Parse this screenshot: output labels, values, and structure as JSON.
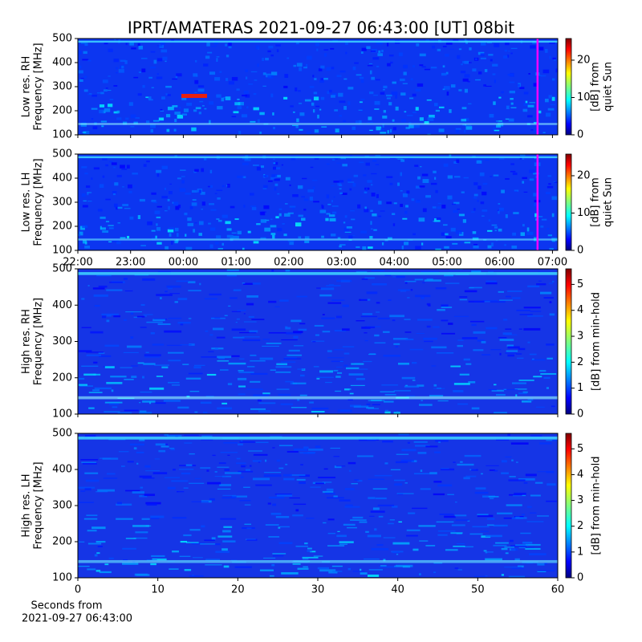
{
  "title": "IPRT/AMATERAS 2021-09-27 06:43:00 [UT]   08bit",
  "chart_data": [
    {
      "type": "spectrogram",
      "ylabel": [
        "Low res. RH",
        "Frequency [MHz]"
      ],
      "ylim": [
        100,
        500
      ],
      "yticks": [
        100,
        200,
        300,
        400,
        500
      ],
      "xlim": [
        -2,
        7.1
      ],
      "marker_x": 6.717,
      "marker_color": "#ff00ff",
      "cbar_label": [
        "[dB] from",
        "quiet Sun"
      ],
      "cbar_lim": [
        0,
        25.8
      ],
      "cbar_ticks": [
        0,
        10,
        20
      ]
    },
    {
      "type": "spectrogram",
      "ylabel": [
        "Low res. LH",
        "Frequency [MHz]"
      ],
      "ylim": [
        100,
        500
      ],
      "yticks": [
        100,
        200,
        300,
        400,
        500
      ],
      "xlim": [
        -2,
        7.1
      ],
      "marker_x": 6.717,
      "marker_color": "#ff00ff",
      "xticks": [
        {
          "value": -2,
          "label": "22:00"
        },
        {
          "value": -1,
          "label": "23:00"
        },
        {
          "value": 0,
          "label": "00:00"
        },
        {
          "value": 1,
          "label": "01:00"
        },
        {
          "value": 2,
          "label": "02:00"
        },
        {
          "value": 3,
          "label": "03:00"
        },
        {
          "value": 4,
          "label": "04:00"
        },
        {
          "value": 5,
          "label": "05:00"
        },
        {
          "value": 6,
          "label": "06:00"
        },
        {
          "value": 7,
          "label": "07:00"
        }
      ],
      "cbar_label": [
        "[dB] from",
        "quiet Sun"
      ],
      "cbar_lim": [
        0,
        25.8
      ],
      "cbar_ticks": [
        0,
        10,
        20
      ]
    },
    {
      "type": "spectrogram",
      "ylabel": [
        "High res. RH",
        "Frequency [MHz]"
      ],
      "ylim": [
        100,
        500
      ],
      "yticks": [
        100,
        200,
        300,
        400,
        500
      ],
      "xlim": [
        0,
        60
      ],
      "cbar_label": [
        "[dB] from min-hold"
      ],
      "cbar_lim": [
        0,
        5.6
      ],
      "cbar_ticks": [
        0,
        1,
        2,
        3,
        4,
        5
      ]
    },
    {
      "type": "spectrogram",
      "ylabel": [
        "High res. LH",
        "Frequency [MHz]"
      ],
      "ylim": [
        100,
        500
      ],
      "yticks": [
        100,
        200,
        300,
        400,
        500
      ],
      "xlim": [
        0,
        60
      ],
      "xticks": [
        0,
        10,
        20,
        30,
        40,
        50,
        60
      ],
      "xlabel": [
        "Seconds from",
        "2021-09-27 06:43:00"
      ],
      "cbar_label": [
        "[dB] from min-hold"
      ],
      "cbar_lim": [
        0,
        5.6
      ],
      "cbar_ticks": [
        0,
        1,
        2,
        3,
        4,
        5
      ]
    }
  ]
}
